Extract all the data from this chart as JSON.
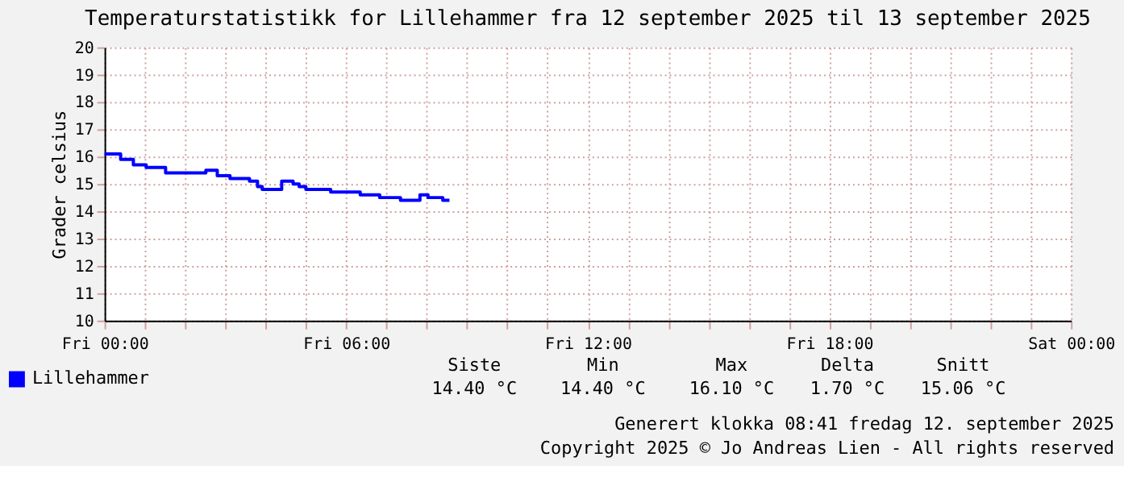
{
  "chart_data": {
    "type": "step",
    "title": "Temperaturstatistikk for Lillehammer fra 12 september 2025 til 13 september 2025",
    "ylabel": "Grader celsius",
    "x": [
      "2025-09-12T00:00",
      "2025-09-12T00:24",
      "2025-09-12T00:43",
      "2025-09-12T01:02",
      "2025-09-12T01:31",
      "2025-09-12T02:31",
      "2025-09-12T02:48",
      "2025-09-12T03:07",
      "2025-09-12T03:36",
      "2025-09-12T03:48",
      "2025-09-12T03:55",
      "2025-09-12T04:24",
      "2025-09-12T04:41",
      "2025-09-12T04:50",
      "2025-09-12T05:00",
      "2025-09-12T05:37",
      "2025-09-12T06:21",
      "2025-09-12T06:50",
      "2025-09-12T07:21",
      "2025-09-12T07:50",
      "2025-09-12T08:02",
      "2025-09-12T08:24",
      "2025-09-12T08:34"
    ],
    "series": [
      {
        "name": "Lillehammer",
        "color": "#0000ff",
        "values": [
          16.1,
          15.9,
          15.7,
          15.6,
          15.4,
          15.5,
          15.3,
          15.2,
          15.1,
          14.9,
          14.8,
          15.1,
          15.0,
          14.9,
          14.8,
          14.7,
          14.6,
          14.5,
          14.4,
          14.6,
          14.5,
          14.4,
          14.4
        ]
      }
    ],
    "xlim": [
      "2025-09-12T00:00",
      "2025-09-13T00:00"
    ],
    "xticks": [
      {
        "value": "2025-09-12T00:00",
        "label": "Fri 00:00"
      },
      {
        "value": "2025-09-12T01:00",
        "label": null
      },
      {
        "value": "2025-09-12T02:00",
        "label": null
      },
      {
        "value": "2025-09-12T03:00",
        "label": null
      },
      {
        "value": "2025-09-12T04:00",
        "label": null
      },
      {
        "value": "2025-09-12T05:00",
        "label": null
      },
      {
        "value": "2025-09-12T06:00",
        "label": "Fri 06:00"
      },
      {
        "value": "2025-09-12T07:00",
        "label": null
      },
      {
        "value": "2025-09-12T08:00",
        "label": null
      },
      {
        "value": "2025-09-12T09:00",
        "label": null
      },
      {
        "value": "2025-09-12T10:00",
        "label": null
      },
      {
        "value": "2025-09-12T11:00",
        "label": null
      },
      {
        "value": "2025-09-12T12:00",
        "label": "Fri 12:00"
      },
      {
        "value": "2025-09-12T13:00",
        "label": null
      },
      {
        "value": "2025-09-12T14:00",
        "label": null
      },
      {
        "value": "2025-09-12T15:00",
        "label": null
      },
      {
        "value": "2025-09-12T16:00",
        "label": null
      },
      {
        "value": "2025-09-12T17:00",
        "label": null
      },
      {
        "value": "2025-09-12T18:00",
        "label": "Fri 18:00"
      },
      {
        "value": "2025-09-12T19:00",
        "label": null
      },
      {
        "value": "2025-09-12T20:00",
        "label": null
      },
      {
        "value": "2025-09-12T21:00",
        "label": null
      },
      {
        "value": "2025-09-12T22:00",
        "label": null
      },
      {
        "value": "2025-09-12T23:00",
        "label": null
      },
      {
        "value": "2025-09-13T00:00",
        "label": "Sat 00:00"
      }
    ],
    "ylim": [
      10,
      20
    ],
    "yticks": [
      10,
      11,
      12,
      13,
      14,
      15,
      16,
      17,
      18,
      19,
      20
    ],
    "grid": true,
    "legend": "bottom left",
    "line_style": "solid",
    "marker": "none",
    "annotations": [
      "Siste",
      "Min",
      "Max",
      "Delta",
      "Snitt",
      "14.40 °C",
      "14.40 °C",
      "16.10 °C",
      "1.70 °C",
      "15.06 °C",
      "Generert klokka 08:41 fredag 12. september 2025",
      "Copyright 2025 © Jo Andreas Lien - All rights reserved"
    ]
  }
}
